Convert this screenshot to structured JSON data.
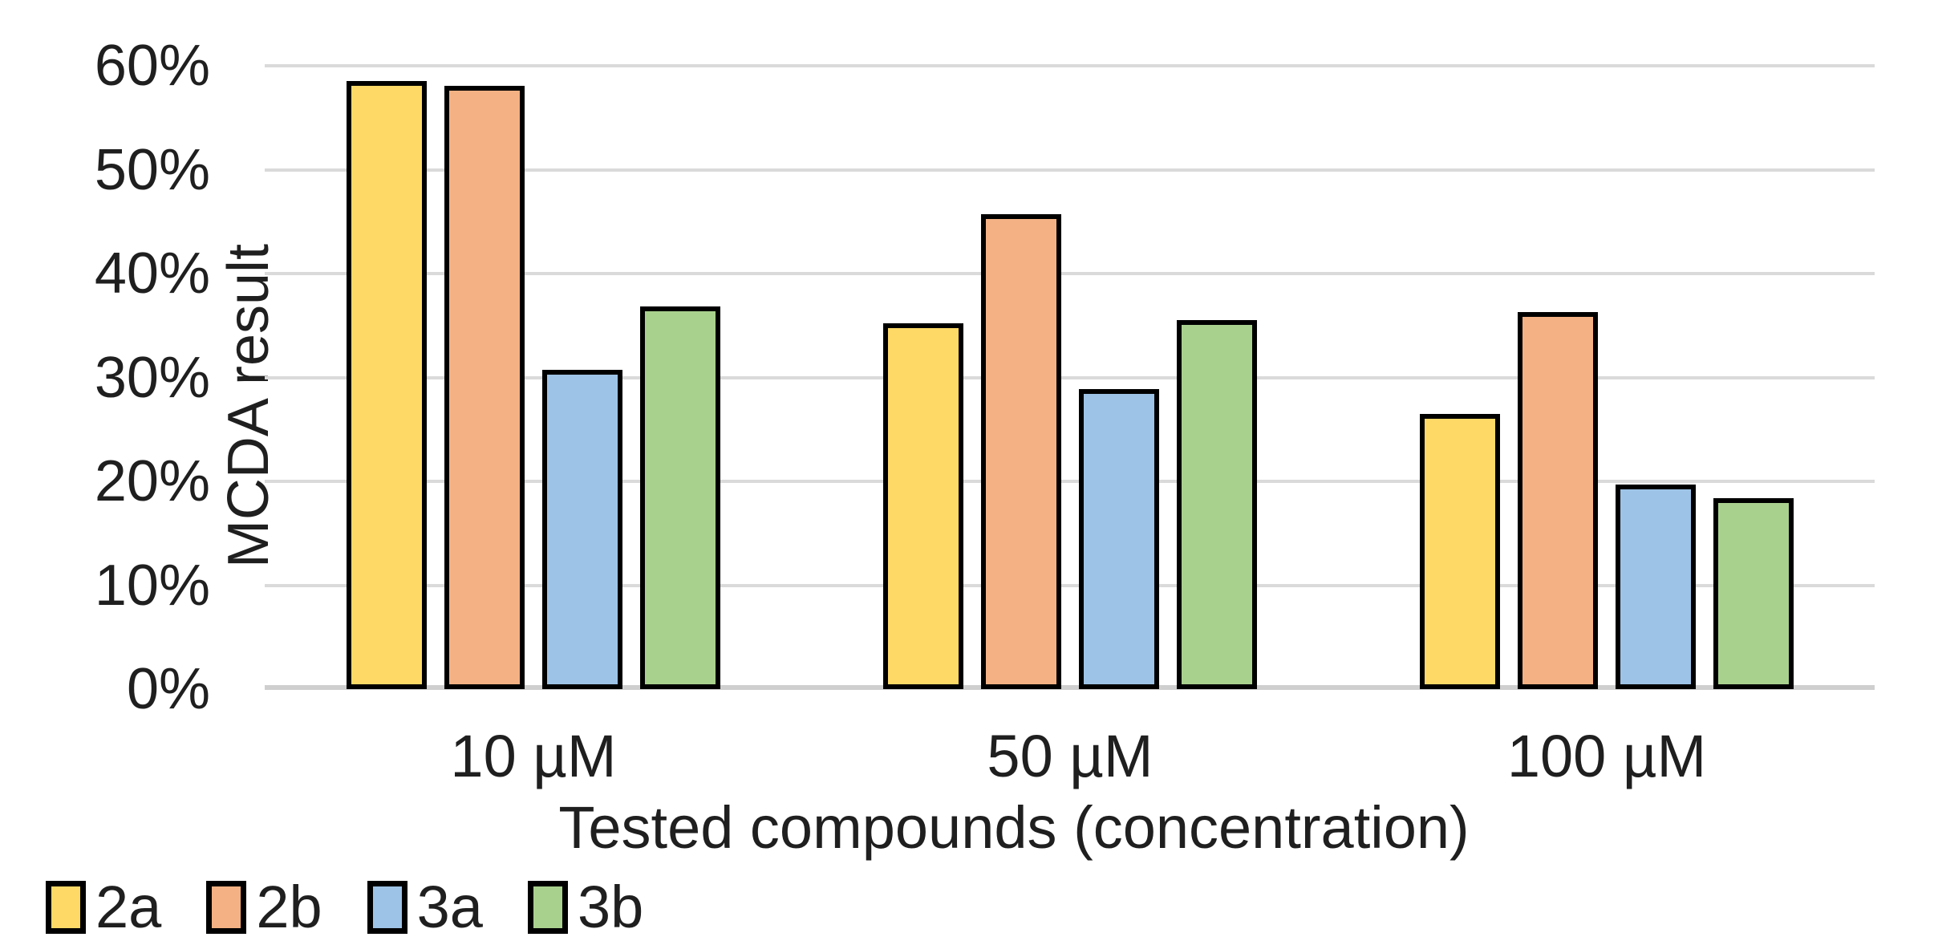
{
  "chart_data": {
    "type": "bar",
    "title": "",
    "xlabel": "Tested compounds (concentration)",
    "ylabel": "MCDA result",
    "categories": [
      "10 µM",
      "50 µM",
      "100 µM"
    ],
    "series": [
      {
        "name": "2a",
        "color": "#FFD966",
        "values": [
          58.5,
          35.2,
          26.5
        ]
      },
      {
        "name": "2b",
        "color": "#F4B183",
        "values": [
          58.1,
          45.7,
          36.3
        ]
      },
      {
        "name": "3a",
        "color": "#9DC3E6",
        "values": [
          30.7,
          28.9,
          19.7
        ]
      },
      {
        "name": "3b",
        "color": "#A9D18E",
        "values": [
          36.8,
          35.5,
          18.4
        ]
      }
    ],
    "ylim": [
      0,
      60
    ],
    "y_ticks": [
      "60%",
      "50%",
      "40%",
      "30%",
      "20%",
      "10%",
      "0%"
    ],
    "grid": true,
    "legend_position": "bottom-left",
    "bar_border_color": "#000000",
    "gridline_color": "#dadada",
    "text_color": "#1f1f1f"
  }
}
